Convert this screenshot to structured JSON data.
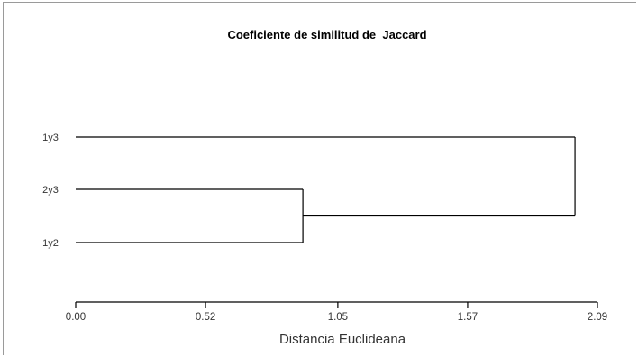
{
  "chart_data": {
    "type": "dendrogram",
    "title": "Coeficiente de similitud de  Jaccard",
    "xlabel": "Distancia Euclideana",
    "ylabel": "",
    "xlim": [
      0.0,
      2.09
    ],
    "ticks": [
      "0.00",
      "0.52",
      "1.05",
      "1.57",
      "2.09"
    ],
    "leaves": [
      "1y3",
      "2y3",
      "1y2"
    ],
    "merges": [
      {
        "members": [
          "2y3",
          "1y2"
        ],
        "distance": 0.91
      },
      {
        "members": [
          "1y3",
          "2y3+1y2"
        ],
        "distance": 2.0
      }
    ],
    "grid": false
  }
}
